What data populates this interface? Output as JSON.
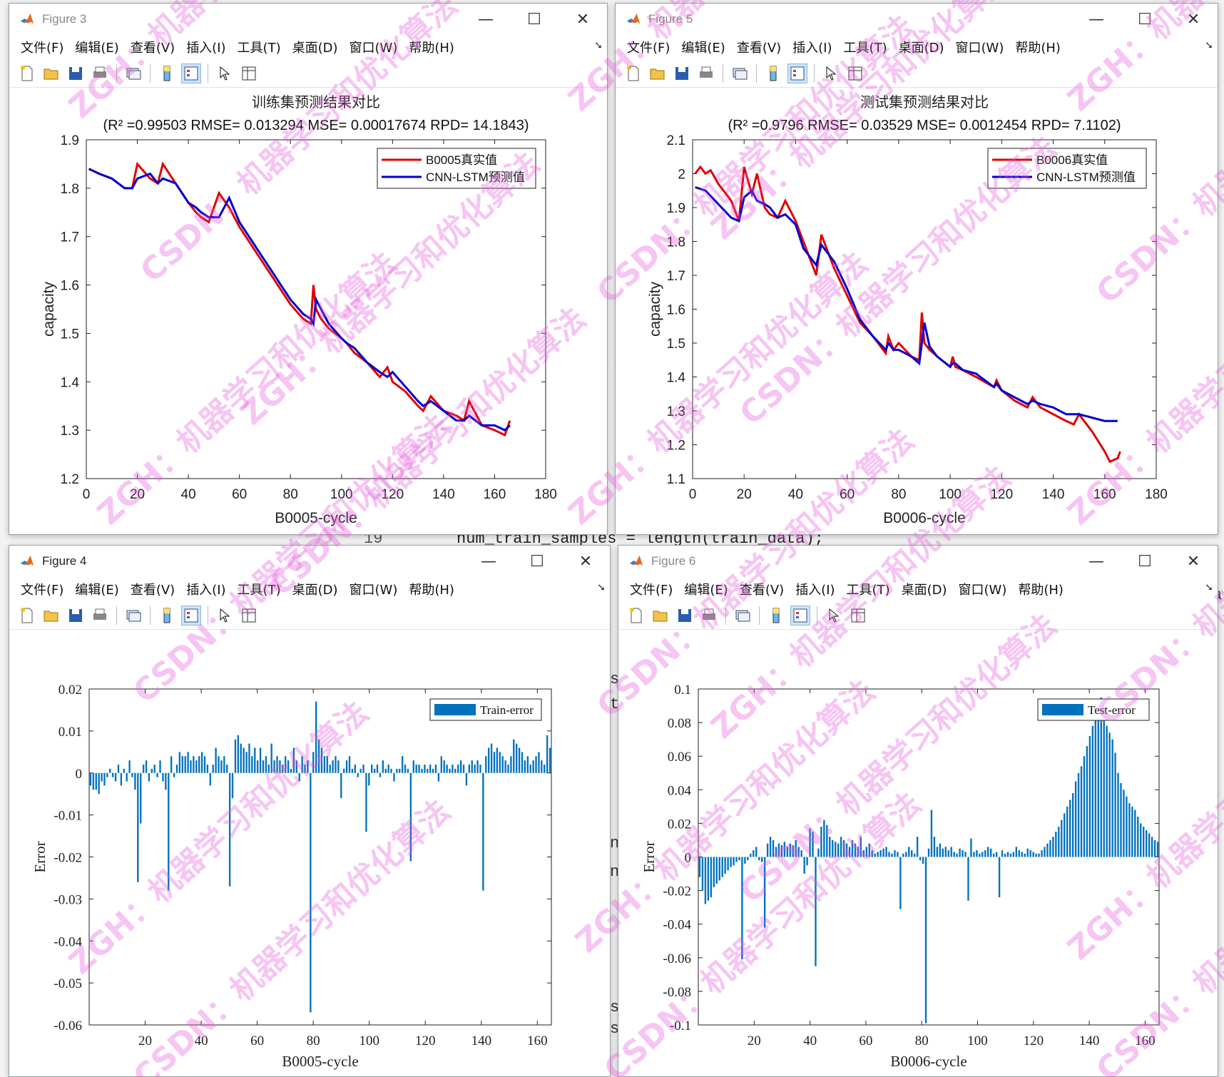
{
  "background": {
    "code_line_number": "19",
    "code_line": "num_train_samples = length(train_data);",
    "edge_fragments": [
      "s",
      "t",
      "n",
      "n",
      "s",
      "s",
      "a",
      "s",
      "r"
    ]
  },
  "menus": [
    "文件(F)",
    "编辑(E)",
    "查看(V)",
    "插入(I)",
    "工具(T)",
    "桌面(D)",
    "窗口(W)",
    "帮助(H)"
  ],
  "window_controls": {
    "minimize": "—",
    "maximize": "☐",
    "close": "✕"
  },
  "toolbar_icons": [
    "new-figure-icon",
    "open-file-icon",
    "save-icon",
    "print-icon",
    "link-icon",
    "colorbar-icon",
    "legend-icon",
    "pointer-icon",
    "property-inspector-icon"
  ],
  "figures": [
    {
      "title": "Figure 3",
      "chart_data": {
        "type": "line",
        "title": "训练集预测结果对比",
        "subtitle": "(R² =0.99503 RMSE= 0.013294 MSE= 0.00017674 RPD= 14.1843)",
        "xlabel": "B0005-cycle",
        "ylabel": "capacity",
        "xlim": [
          0,
          180
        ],
        "ylim": [
          1.2,
          1.9
        ],
        "xticks": [
          "0",
          "20",
          "40",
          "60",
          "80",
          "100",
          "120",
          "140",
          "160",
          "180"
        ],
        "yticks": [
          "1.2",
          "1.3",
          "1.4",
          "1.5",
          "1.6",
          "1.7",
          "1.8",
          "1.9"
        ],
        "legend_position": "top-right",
        "series": [
          {
            "name": "B0005真实值",
            "color": "#e00000",
            "x": [
              1,
              5,
              10,
              15,
              18,
              20,
              25,
              28,
              30,
              35,
              40,
              43,
              45,
              48,
              52,
              56,
              60,
              65,
              70,
              75,
              80,
              85,
              88,
              89,
              90,
              92,
              95,
              100,
              102,
              105,
              110,
              115,
              118,
              120,
              125,
              130,
              132,
              135,
              140,
              145,
              148,
              150,
              155,
              160,
              164,
              166
            ],
            "y": [
              1.84,
              1.83,
              1.82,
              1.8,
              1.8,
              1.85,
              1.82,
              1.81,
              1.85,
              1.81,
              1.77,
              1.75,
              1.74,
              1.73,
              1.79,
              1.76,
              1.72,
              1.68,
              1.64,
              1.6,
              1.56,
              1.53,
              1.52,
              1.6,
              1.55,
              1.53,
              1.51,
              1.49,
              1.48,
              1.46,
              1.44,
              1.41,
              1.43,
              1.4,
              1.38,
              1.35,
              1.34,
              1.37,
              1.34,
              1.33,
              1.32,
              1.36,
              1.31,
              1.3,
              1.29,
              1.32
            ]
          },
          {
            "name": "CNN-LSTM预测值",
            "color": "#0000d0",
            "x": [
              1,
              5,
              10,
              15,
              18,
              20,
              25,
              28,
              30,
              35,
              40,
              43,
              45,
              48,
              52,
              56,
              60,
              65,
              70,
              75,
              80,
              85,
              88,
              89,
              90,
              92,
              95,
              100,
              102,
              105,
              110,
              115,
              118,
              120,
              125,
              130,
              132,
              135,
              140,
              145,
              148,
              150,
              155,
              160,
              164,
              166
            ],
            "y": [
              1.84,
              1.83,
              1.82,
              1.8,
              1.8,
              1.82,
              1.83,
              1.81,
              1.82,
              1.81,
              1.77,
              1.76,
              1.75,
              1.74,
              1.74,
              1.78,
              1.73,
              1.69,
              1.65,
              1.61,
              1.57,
              1.54,
              1.53,
              1.52,
              1.57,
              1.55,
              1.52,
              1.49,
              1.48,
              1.47,
              1.44,
              1.42,
              1.41,
              1.42,
              1.39,
              1.36,
              1.35,
              1.36,
              1.34,
              1.32,
              1.32,
              1.33,
              1.31,
              1.31,
              1.3,
              1.31
            ]
          }
        ]
      }
    },
    {
      "title": "Figure 5",
      "chart_data": {
        "type": "line",
        "title": "测试集预测结果对比",
        "subtitle": "(R² =0.9796 RMSE= 0.03529 MSE= 0.0012454 RPD= 7.1102)",
        "xlabel": "B0006-cycle",
        "ylabel": "capacity",
        "xlim": [
          0,
          180
        ],
        "ylim": [
          1.1,
          2.1
        ],
        "xticks": [
          "0",
          "20",
          "40",
          "60",
          "80",
          "100",
          "120",
          "140",
          "160",
          "180"
        ],
        "yticks": [
          "1.1",
          "1.2",
          "1.3",
          "1.4",
          "1.5",
          "1.6",
          "1.7",
          "1.8",
          "1.9",
          "2",
          "2.1"
        ],
        "legend_position": "top-right",
        "series": [
          {
            "name": "B0006真实值",
            "color": "#e00000",
            "x": [
              1,
              3,
              5,
              7,
              10,
              15,
              18,
              20,
              23,
              25,
              28,
              30,
              33,
              36,
              40,
              43,
              46,
              48,
              50,
              55,
              60,
              65,
              70,
              75,
              76,
              78,
              80,
              85,
              88,
              89,
              90,
              92,
              95,
              100,
              101,
              102,
              105,
              110,
              117,
              118,
              120,
              125,
              130,
              132,
              135,
              140,
              145,
              148,
              150,
              155,
              160,
              162,
              165,
              166
            ],
            "y": [
              2.0,
              2.02,
              2.0,
              2.01,
              1.97,
              1.92,
              1.86,
              2.02,
              1.94,
              2.0,
              1.9,
              1.88,
              1.87,
              1.92,
              1.86,
              1.8,
              1.74,
              1.7,
              1.82,
              1.72,
              1.64,
              1.56,
              1.52,
              1.47,
              1.52,
              1.48,
              1.5,
              1.46,
              1.45,
              1.59,
              1.5,
              1.48,
              1.46,
              1.43,
              1.46,
              1.43,
              1.42,
              1.4,
              1.37,
              1.39,
              1.36,
              1.33,
              1.31,
              1.34,
              1.31,
              1.29,
              1.27,
              1.26,
              1.29,
              1.24,
              1.18,
              1.15,
              1.16,
              1.18
            ]
          },
          {
            "name": "CNN-LSTM预测值",
            "color": "#0000d0",
            "x": [
              1,
              5,
              10,
              15,
              18,
              20,
              23,
              25,
              28,
              30,
              33,
              36,
              40,
              43,
              46,
              48,
              50,
              55,
              60,
              65,
              70,
              75,
              76,
              78,
              80,
              85,
              88,
              89,
              90,
              92,
              95,
              100,
              101,
              102,
              105,
              110,
              117,
              118,
              120,
              125,
              130,
              132,
              135,
              140,
              145,
              148,
              150,
              155,
              160,
              165
            ],
            "y": [
              1.96,
              1.95,
              1.91,
              1.87,
              1.86,
              1.93,
              1.95,
              1.92,
              1.91,
              1.9,
              1.87,
              1.88,
              1.85,
              1.78,
              1.75,
              1.73,
              1.79,
              1.74,
              1.66,
              1.57,
              1.52,
              1.48,
              1.5,
              1.48,
              1.48,
              1.46,
              1.44,
              1.5,
              1.56,
              1.49,
              1.46,
              1.43,
              1.44,
              1.44,
              1.42,
              1.41,
              1.37,
              1.38,
              1.36,
              1.34,
              1.32,
              1.33,
              1.32,
              1.31,
              1.29,
              1.29,
              1.29,
              1.28,
              1.27,
              1.27
            ]
          }
        ]
      }
    },
    {
      "title": "Figure 4",
      "chart_data": {
        "type": "bar",
        "xlabel": "B0005-cycle",
        "ylabel": "Error",
        "xlim": [
          0,
          165
        ],
        "ylim": [
          -0.06,
          0.02
        ],
        "xticks": [
          "20",
          "40",
          "60",
          "80",
          "100",
          "120",
          "140",
          "160"
        ],
        "yticks": [
          "-0.06",
          "-0.05",
          "-0.04",
          "-0.03",
          "-0.02",
          "-0.01",
          "0",
          "0.01",
          "0.02"
        ],
        "legend_position": "top-right",
        "series": [
          {
            "name": "Train-error",
            "color": "#0072bd",
            "values": [
              -0.003,
              -0.004,
              -0.004,
              -0.005,
              -0.002,
              -0.003,
              -0.001,
              0.001,
              -0.001,
              -0.002,
              0.002,
              -0.003,
              0.001,
              -0.002,
              0.003,
              -0.001,
              -0.004,
              -0.026,
              -0.012,
              0.002,
              0.003,
              -0.002,
              0.001,
              0.002,
              -0.001,
              0.003,
              -0.002,
              -0.004,
              -0.028,
              0.004,
              -0.001,
              0.002,
              0.005,
              0.004,
              0.004,
              0.005,
              0.003,
              0.004,
              0.003,
              0.004,
              0.005,
              0.004,
              0.002,
              -0.003,
              0.002,
              0.006,
              0.004,
              0.003,
              0.004,
              0.002,
              -0.027,
              -0.006,
              0.008,
              0.009,
              0.007,
              0.006,
              0.005,
              0.007,
              0.004,
              0.006,
              0.003,
              0.006,
              0.003,
              0.004,
              0.002,
              0.007,
              0.003,
              0.004,
              0.003,
              0.002,
              0.004,
              0.003,
              0.001,
              0.006,
              0.003,
              -0.002,
              0.004,
              0.002,
              0.003,
              -0.057,
              0.005,
              0.017,
              0.008,
              0.006,
              0.004,
              0.004,
              0.002,
              0.003,
              0.004,
              0.003,
              -0.006,
              0.001,
              0.003,
              0.004,
              0.001,
              0.002,
              -0.001,
              0.001,
              0.002,
              -0.014,
              -0.003,
              0.002,
              0.001,
              0.002,
              -0.001,
              0.003,
              0.001,
              0.002,
              0.001,
              -0.002,
              0.001,
              0.001,
              0.004,
              0.002,
              0.001,
              -0.021,
              0.003,
              0.002,
              0.002,
              0.001,
              0.002,
              0.001,
              0.002,
              0.001,
              0.002,
              -0.002,
              0.004,
              0.003,
              0.002,
              0.001,
              0.002,
              0.001,
              0.002,
              0.003,
              0.002,
              -0.003,
              0.002,
              0.003,
              0.002,
              0.003,
              0.002,
              -0.028,
              0.004,
              0.006,
              0.007,
              0.005,
              0.006,
              0.005,
              0.004,
              0.003,
              0.002,
              0.004,
              0.008,
              0.007,
              0.006,
              0.005,
              0.003,
              0.004,
              0.002,
              0.003,
              0.004,
              0.005,
              0.003,
              0.002,
              0.009,
              0.006
            ]
          }
        ]
      }
    },
    {
      "title": "Figure 6",
      "chart_data": {
        "type": "bar",
        "xlabel": "B0006-cycle",
        "ylabel": "Error",
        "xlim": [
          0,
          165
        ],
        "ylim": [
          -0.1,
          0.1
        ],
        "xticks": [
          "20",
          "40",
          "60",
          "80",
          "100",
          "120",
          "140",
          "160"
        ],
        "yticks": [
          "-0.1",
          "-0.08",
          "-0.06",
          "-0.04",
          "-0.02",
          "0",
          "0.02",
          "0.04",
          "0.06",
          "0.08",
          "0.1"
        ],
        "legend_position": "top-right",
        "series": [
          {
            "name": "Test-error",
            "color": "#0072bd",
            "values": [
              -0.012,
              -0.02,
              -0.028,
              -0.026,
              -0.024,
              -0.018,
              -0.016,
              -0.014,
              -0.012,
              -0.01,
              -0.008,
              -0.006,
              -0.005,
              -0.003,
              -0.002,
              -0.061,
              -0.004,
              -0.002,
              0.002,
              0.004,
              0.006,
              -0.002,
              -0.003,
              -0.042,
              0.008,
              0.012,
              0.01,
              0.006,
              0.008,
              0.007,
              0.009,
              0.006,
              0.008,
              0.007,
              0.01,
              0.006,
              0.004,
              -0.01,
              -0.005,
              0.017,
              0.015,
              -0.065,
              0.005,
              0.018,
              0.022,
              0.019,
              0.012,
              0.01,
              0.009,
              0.008,
              0.012,
              0.01,
              0.008,
              0.006,
              0.01,
              0.008,
              0.006,
              0.012,
              0.004,
              0.006,
              0.008,
              0.004,
              0.002,
              0.003,
              0.004,
              0.005,
              0.006,
              0.003,
              0.002,
              0.004,
              0.003,
              -0.031,
              0.002,
              0.003,
              0.006,
              0.004,
              0.002,
              0.012,
              -0.002,
              -0.004,
              -0.099,
              0.005,
              0.028,
              0.012,
              0.006,
              0.008,
              0.005,
              0.006,
              0.004,
              0.006,
              0.003,
              0.002,
              0.005,
              0.004,
              0.003,
              -0.026,
              0.011,
              0.003,
              0.004,
              0.002,
              0.003,
              0.004,
              0.006,
              0.005,
              0.002,
              0.003,
              -0.024,
              0.004,
              0.002,
              0.003,
              0.002,
              0.003,
              0.006,
              0.004,
              0.003,
              0.002,
              0.005,
              0.004,
              0.003,
              0.002,
              0.002,
              0.004,
              0.006,
              0.008,
              0.01,
              0.012,
              0.015,
              0.018,
              0.022,
              0.026,
              0.03,
              0.034,
              0.038,
              0.045,
              0.05,
              0.054,
              0.06,
              0.066,
              0.072,
              0.078,
              0.082,
              0.09,
              0.095,
              0.088,
              0.078,
              0.074,
              0.07,
              0.062,
              0.05,
              0.044,
              0.04,
              0.036,
              0.032,
              0.03,
              0.028,
              0.024,
              0.02,
              0.018,
              0.016,
              0.014,
              0.012,
              0.01,
              0.009
            ]
          }
        ]
      }
    }
  ],
  "watermarks": [
    "ZGH：机器学习和优化算法",
    "CSDN：机器学习和优化算法"
  ]
}
